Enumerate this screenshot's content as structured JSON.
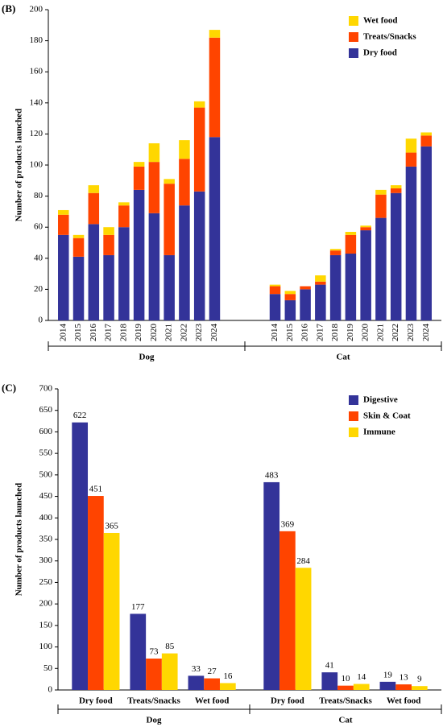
{
  "chart_data": [
    {
      "type": "bar",
      "stacked": true,
      "panel": "(B)",
      "ylabel": "Number of products launched",
      "categories": [
        "2014",
        "2015",
        "2016",
        "2017",
        "2018",
        "2019",
        "2020",
        "2021",
        "2022",
        "2023",
        "2024",
        "2014",
        "2015",
        "2016",
        "2017",
        "2018",
        "2019",
        "2020",
        "2021",
        "2022",
        "2023",
        "2024"
      ],
      "groups": [
        "Dog",
        "Cat"
      ],
      "series": [
        {
          "name": "Dry food",
          "color": "#333399",
          "values": [
            55,
            41,
            62,
            42,
            60,
            84,
            69,
            42,
            74,
            83,
            118,
            17,
            13,
            20,
            23,
            42,
            43,
            58,
            66,
            82,
            99,
            112
          ]
        },
        {
          "name": "Treats/Snacks",
          "color": "#ff4400",
          "values": [
            13,
            12,
            20,
            13,
            14,
            15,
            33,
            46,
            30,
            54,
            64,
            5,
            4,
            2,
            2,
            3,
            12,
            2,
            15,
            3,
            9,
            7
          ]
        },
        {
          "name": "Wet food",
          "color": "#ffd700",
          "values": [
            3,
            2,
            5,
            5,
            2,
            3,
            12,
            3,
            12,
            4,
            5,
            1,
            2,
            0,
            4,
            1,
            2,
            1,
            3,
            2,
            9,
            2
          ]
        }
      ],
      "ylim": [
        0,
        200
      ],
      "yticks": [
        0,
        20,
        40,
        60,
        80,
        100,
        120,
        140,
        160,
        180,
        200
      ],
      "legend": "top-right",
      "legend_reversed": true,
      "data_labels": false
    },
    {
      "type": "bar",
      "stacked": false,
      "panel": "(C)",
      "ylabel": "Number of products launched",
      "categories": [
        "Dry food",
        "Treats/Snacks",
        "Wet food",
        "Dry food",
        "Treats/Snacks",
        "Wet food"
      ],
      "groups": [
        "Dog",
        "Cat"
      ],
      "series": [
        {
          "name": "Digestive",
          "color": "#333399",
          "values": [
            622,
            177,
            33,
            483,
            41,
            19
          ]
        },
        {
          "name": "Skin & Coat",
          "color": "#ff4400",
          "values": [
            451,
            73,
            27,
            369,
            10,
            13
          ]
        },
        {
          "name": "Immune",
          "color": "#ffd700",
          "values": [
            365,
            85,
            16,
            284,
            14,
            9
          ]
        }
      ],
      "ylim": [
        0,
        700
      ],
      "yticks": [
        0,
        50,
        100,
        150,
        200,
        250,
        300,
        350,
        400,
        450,
        500,
        550,
        600,
        650,
        700
      ],
      "legend": "top-right",
      "legend_reversed": false,
      "data_labels": true
    }
  ]
}
